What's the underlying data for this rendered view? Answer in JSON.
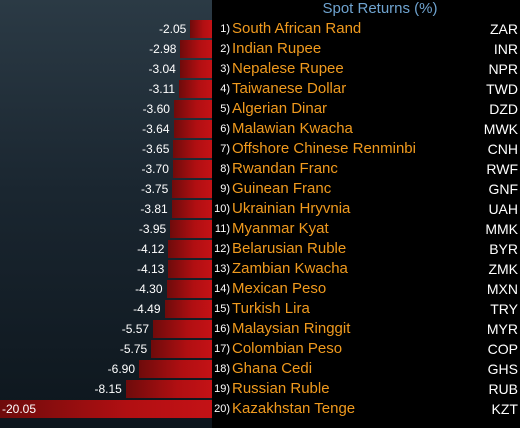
{
  "chart_data": {
    "type": "bar",
    "orientation": "horizontal",
    "title": "Spot Returns (%)",
    "categories": [
      "South African Rand",
      "Indian Rupee",
      "Nepalese Rupee",
      "Taiwanese Dollar",
      "Algerian Dinar",
      "Malawian Kwacha",
      "Offshore Chinese Renminbi",
      "Rwandan Franc",
      "Guinean Franc",
      "Ukrainian Hryvnia",
      "Myanmar Kyat",
      "Belarusian Ruble",
      "Zambian Kwacha",
      "Mexican Peso",
      "Turkish Lira",
      "Malaysian Ringgit",
      "Colombian Peso",
      "Ghana Cedi",
      "Russian Ruble",
      "Kazakhstan Tenge"
    ],
    "codes": [
      "ZAR",
      "INR",
      "NPR",
      "TWD",
      "DZD",
      "MWK",
      "CNH",
      "RWF",
      "GNF",
      "UAH",
      "MMK",
      "BYR",
      "ZMK",
      "MXN",
      "TRY",
      "MYR",
      "COP",
      "GHS",
      "RUB",
      "KZT"
    ],
    "ranks": [
      "1)",
      "2)",
      "3)",
      "4)",
      "5)",
      "6)",
      "7)",
      "8)",
      "9)",
      "10)",
      "11)",
      "12)",
      "13)",
      "14)",
      "15)",
      "16)",
      "17)",
      "18)",
      "19)",
      "20)"
    ],
    "values": [
      -2.05,
      -2.98,
      -3.04,
      -3.11,
      -3.6,
      -3.64,
      -3.65,
      -3.7,
      -3.75,
      -3.81,
      -3.95,
      -4.12,
      -4.13,
      -4.3,
      -4.49,
      -5.57,
      -5.75,
      -6.9,
      -8.15,
      -20.05
    ],
    "value_labels": [
      "-2.05",
      "-2.98",
      "-3.04",
      "-3.11",
      "-3.60",
      "-3.64",
      "-3.65",
      "-3.70",
      "-3.75",
      "-3.81",
      "-3.95",
      "-4.12",
      "-4.13",
      "-4.30",
      "-4.49",
      "-5.57",
      "-5.75",
      "-6.90",
      "-8.15",
      "-20.05"
    ],
    "bar_color": "#c41216",
    "label_color": "#f09a1e",
    "title_color": "#6fa3cf"
  }
}
